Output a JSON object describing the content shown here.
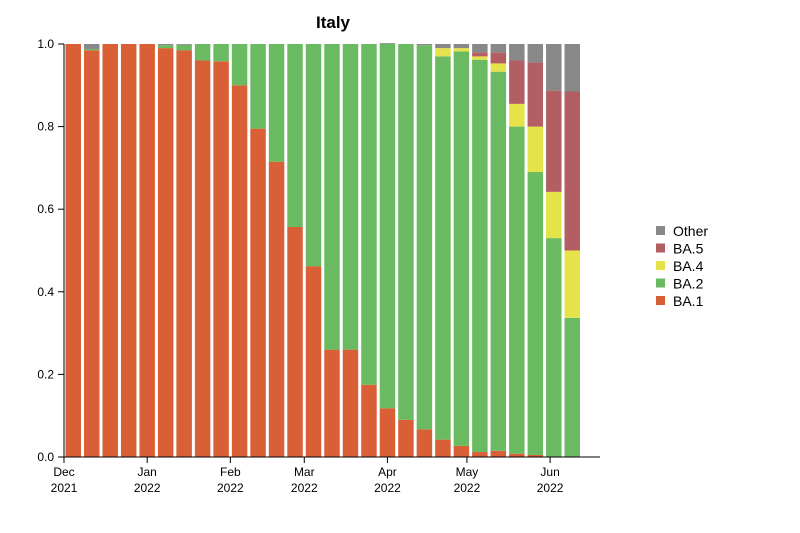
{
  "chart_data": {
    "type": "bar",
    "stacked": true,
    "title": "Italy",
    "xlabel": "",
    "ylabel": "",
    "ylim": [
      0,
      1
    ],
    "yticks": [
      "0.0",
      "0.2",
      "0.4",
      "0.6",
      "0.8",
      "1.0"
    ],
    "xticks": [
      {
        "line1": "Dec",
        "line2": "2021",
        "index": 0
      },
      {
        "line1": "Jan",
        "line2": "2022",
        "index": 4.5
      },
      {
        "line1": "Feb",
        "line2": "2022",
        "index": 9
      },
      {
        "line1": "Mar",
        "line2": "2022",
        "index": 13
      },
      {
        "line1": "Apr",
        "line2": "2022",
        "index": 17.5
      },
      {
        "line1": "May",
        "line2": "2022",
        "index": 21.8
      },
      {
        "line1": "Jun",
        "line2": "2022",
        "index": 26.3
      }
    ],
    "bar_count": 29,
    "legend_position": "right",
    "series": [
      {
        "name": "BA.1",
        "color": "#d95f36",
        "values": [
          1.0,
          0.985,
          1.0,
          1.0,
          1.0,
          0.99,
          0.985,
          0.96,
          0.958,
          0.9,
          0.795,
          0.715,
          0.557,
          0.462,
          0.26,
          0.26,
          0.175,
          0.118,
          0.09,
          0.067,
          0.042,
          0.027,
          0.012,
          0.015,
          0.008,
          0.005,
          0.0,
          0.0,
          0.0
        ]
      },
      {
        "name": "BA.2",
        "color": "#6aba62",
        "values": [
          0.0,
          0.003,
          0.0,
          0.0,
          0.0,
          0.007,
          0.013,
          0.04,
          0.042,
          0.1,
          0.205,
          0.285,
          0.443,
          0.538,
          0.74,
          0.74,
          0.825,
          0.882,
          0.91,
          0.93,
          0.928,
          0.955,
          0.95,
          0.918,
          0.792,
          0.685,
          0.53,
          0.337,
          0.0
        ]
      },
      {
        "name": "BA.4",
        "color": "#e6e34a",
        "values": [
          0.0,
          0.0,
          0.0,
          0.0,
          0.0,
          0.0,
          0.0,
          0.0,
          0.0,
          0.0,
          0.0,
          0.0,
          0.0,
          0.0,
          0.0,
          0.0,
          0.0,
          0.0,
          0.0,
          0.0,
          0.02,
          0.008,
          0.008,
          0.02,
          0.055,
          0.11,
          0.112,
          0.163,
          0.0
        ]
      },
      {
        "name": "BA.5",
        "color": "#b35e62",
        "values": [
          0.0,
          0.0,
          0.0,
          0.0,
          0.0,
          0.0,
          0.0,
          0.0,
          0.0,
          0.0,
          0.0,
          0.0,
          0.0,
          0.0,
          0.0,
          0.0,
          0.0,
          0.0,
          0.0,
          0.0,
          0.0,
          0.0,
          0.01,
          0.027,
          0.105,
          0.155,
          0.245,
          0.385,
          0.0
        ]
      },
      {
        "name": "Other",
        "color": "#888888",
        "values": [
          0.0,
          0.012,
          0.0,
          0.0,
          0.0,
          0.003,
          0.002,
          0.0,
          0.0,
          0.0,
          0.0,
          0.0,
          0.0,
          0.0,
          0.0,
          0.0,
          0.0,
          0.002,
          0.0,
          0.003,
          0.01,
          0.01,
          0.02,
          0.02,
          0.04,
          0.045,
          0.113,
          0.115,
          0.0
        ]
      }
    ],
    "legend_order": [
      "Other",
      "BA.5",
      "BA.4",
      "BA.2",
      "BA.1"
    ]
  }
}
